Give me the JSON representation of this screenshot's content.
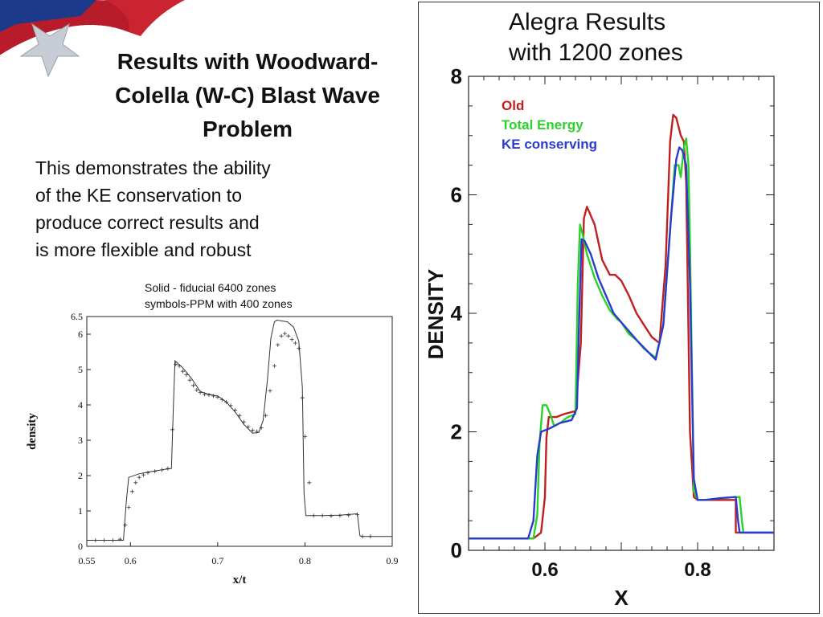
{
  "slide": {
    "title_line1": "Results with Woodward-",
    "title_line2": "Colella (W-C) Blast Wave",
    "title_line3": "Problem",
    "body_line1": "This demonstrates the ability",
    "body_line2": "of the KE conservation to",
    "body_line3": "produce correct results and",
    "body_line4": "is more flexible and robust",
    "note_line1": "Solid - fiducial 6400 zones",
    "note_line2": "symbols-PPM with 400 zones"
  },
  "right_title": {
    "line1": "Alegra Results",
    "line2": "with 1200 zones"
  },
  "chart_data": [
    {
      "type": "line",
      "xlabel": "x/t",
      "ylabel": "density",
      "xlim": [
        0.55,
        0.9
      ],
      "ylim": [
        0,
        6.5
      ],
      "x_ticks": [
        "0.55",
        "0.6",
        "0.7",
        "0.8",
        "0.9"
      ],
      "x_tick_values": [
        0.55,
        0.6,
        0.7,
        0.8,
        0.9
      ],
      "y_ticks": [
        "0",
        "1",
        "2",
        "3",
        "4",
        "5",
        "6",
        "6.5"
      ],
      "y_tick_values": [
        0,
        1,
        2,
        3,
        4,
        5,
        6,
        6.5
      ],
      "series": [
        {
          "style": "solid",
          "color": "#333333",
          "x": [
            0.55,
            0.592,
            0.595,
            0.598,
            0.61,
            0.62,
            0.64,
            0.647,
            0.649,
            0.651,
            0.66,
            0.67,
            0.68,
            0.69,
            0.7,
            0.71,
            0.72,
            0.73,
            0.74,
            0.747,
            0.752,
            0.757,
            0.761,
            0.765,
            0.768,
            0.772,
            0.78,
            0.787,
            0.793,
            0.797,
            0.799,
            0.801,
            0.82,
            0.84,
            0.85,
            0.86,
            0.863,
            0.865,
            0.9
          ],
          "y": [
            0.17,
            0.17,
            1.2,
            1.95,
            2.05,
            2.1,
            2.18,
            2.2,
            3.8,
            5.25,
            5.05,
            4.75,
            4.38,
            4.3,
            4.25,
            4.08,
            3.8,
            3.45,
            3.2,
            3.22,
            3.55,
            4.7,
            5.9,
            6.35,
            6.4,
            6.38,
            6.35,
            6.2,
            5.8,
            4.5,
            1.5,
            0.87,
            0.87,
            0.88,
            0.9,
            0.92,
            0.3,
            0.28,
            0.28
          ]
        },
        {
          "style": "plus",
          "color": "#333333",
          "x": [
            0.56,
            0.57,
            0.58,
            0.588,
            0.594,
            0.598,
            0.602,
            0.606,
            0.61,
            0.615,
            0.62,
            0.628,
            0.636,
            0.643,
            0.648,
            0.652,
            0.656,
            0.66,
            0.664,
            0.668,
            0.672,
            0.676,
            0.68,
            0.685,
            0.69,
            0.695,
            0.7,
            0.705,
            0.71,
            0.715,
            0.72,
            0.725,
            0.73,
            0.735,
            0.74,
            0.745,
            0.75,
            0.755,
            0.76,
            0.765,
            0.769,
            0.773,
            0.777,
            0.781,
            0.785,
            0.789,
            0.793,
            0.797,
            0.8,
            0.805,
            0.81,
            0.82,
            0.83,
            0.84,
            0.85,
            0.86,
            0.866,
            0.875
          ],
          "y": [
            0.17,
            0.17,
            0.17,
            0.2,
            0.6,
            1.1,
            1.55,
            1.8,
            1.95,
            2.02,
            2.08,
            2.12,
            2.16,
            2.2,
            3.3,
            5.15,
            5.1,
            4.95,
            4.85,
            4.7,
            4.55,
            4.42,
            4.35,
            4.3,
            4.28,
            4.25,
            4.22,
            4.15,
            4.08,
            3.98,
            3.85,
            3.7,
            3.52,
            3.38,
            3.28,
            3.25,
            3.35,
            3.7,
            4.4,
            5.1,
            5.7,
            5.95,
            6.02,
            5.95,
            5.85,
            5.75,
            5.6,
            4.2,
            3.1,
            1.8,
            0.87,
            0.87,
            0.86,
            0.87,
            0.88,
            0.9,
            0.28,
            0.28
          ]
        }
      ]
    },
    {
      "type": "line",
      "xlabel": "X",
      "ylabel": "DENSITY",
      "xlim": [
        0.5,
        0.9
      ],
      "ylim": [
        0,
        8
      ],
      "x_ticks": [
        "0.6",
        "0.8"
      ],
      "x_tick_values": [
        0.6,
        0.8
      ],
      "y_ticks": [
        "0",
        "2",
        "4",
        "6",
        "8"
      ],
      "y_tick_values": [
        0,
        2,
        4,
        6,
        8
      ],
      "legend": "top-left",
      "series": [
        {
          "name": "Old",
          "color": "#c0201e",
          "x": [
            0.5,
            0.585,
            0.595,
            0.6,
            0.602,
            0.605,
            0.615,
            0.625,
            0.64,
            0.647,
            0.651,
            0.655,
            0.665,
            0.675,
            0.685,
            0.692,
            0.7,
            0.71,
            0.72,
            0.73,
            0.74,
            0.75,
            0.758,
            0.764,
            0.768,
            0.772,
            0.778,
            0.782,
            0.785,
            0.79,
            0.795,
            0.8,
            0.81,
            0.83,
            0.85,
            0.85,
            0.86,
            0.9
          ],
          "y": [
            0.2,
            0.2,
            0.3,
            0.9,
            1.9,
            2.25,
            2.25,
            2.3,
            2.35,
            3.5,
            5.6,
            5.8,
            5.5,
            4.9,
            4.65,
            4.65,
            4.55,
            4.3,
            4.0,
            3.8,
            3.6,
            3.5,
            4.8,
            6.9,
            7.35,
            7.3,
            7.0,
            6.9,
            6.2,
            2.0,
            0.9,
            0.85,
            0.85,
            0.85,
            0.85,
            0.3,
            0.3,
            0.3
          ]
        },
        {
          "name": "Total Energy",
          "color": "#2bd22b",
          "x": [
            0.5,
            0.585,
            0.59,
            0.593,
            0.597,
            0.602,
            0.607,
            0.612,
            0.62,
            0.63,
            0.64,
            0.643,
            0.646,
            0.65,
            0.655,
            0.665,
            0.675,
            0.685,
            0.695,
            0.7,
            0.71,
            0.72,
            0.73,
            0.745,
            0.755,
            0.765,
            0.77,
            0.775,
            0.778,
            0.782,
            0.785,
            0.788,
            0.79,
            0.795,
            0.8,
            0.81,
            0.83,
            0.855,
            0.858,
            0.86,
            0.9
          ],
          "y": [
            0.2,
            0.2,
            0.6,
            1.8,
            2.45,
            2.45,
            2.3,
            2.1,
            2.15,
            2.25,
            2.3,
            4.5,
            5.5,
            5.3,
            5.0,
            4.6,
            4.3,
            4.05,
            3.9,
            3.85,
            3.65,
            3.55,
            3.4,
            3.25,
            3.8,
            5.6,
            6.5,
            6.5,
            6.3,
            6.8,
            6.95,
            6.5,
            5.2,
            1.0,
            0.85,
            0.85,
            0.88,
            0.9,
            0.5,
            0.3,
            0.3
          ]
        },
        {
          "name": "KE conserving",
          "color": "#2a3cd0",
          "x": [
            0.5,
            0.578,
            0.585,
            0.59,
            0.595,
            0.605,
            0.62,
            0.635,
            0.642,
            0.645,
            0.648,
            0.652,
            0.66,
            0.67,
            0.68,
            0.69,
            0.7,
            0.71,
            0.72,
            0.735,
            0.745,
            0.755,
            0.765,
            0.772,
            0.776,
            0.78,
            0.785,
            0.79,
            0.795,
            0.8,
            0.81,
            0.83,
            0.85,
            0.853,
            0.855,
            0.9
          ],
          "y": [
            0.2,
            0.2,
            0.5,
            1.6,
            2.0,
            2.05,
            2.15,
            2.2,
            2.4,
            4.0,
            5.25,
            5.22,
            5.0,
            4.6,
            4.3,
            4.0,
            3.85,
            3.7,
            3.55,
            3.35,
            3.22,
            3.8,
            5.6,
            6.6,
            6.8,
            6.75,
            6.5,
            4.5,
            1.2,
            0.85,
            0.85,
            0.88,
            0.9,
            0.5,
            0.3,
            0.3
          ]
        }
      ]
    }
  ]
}
